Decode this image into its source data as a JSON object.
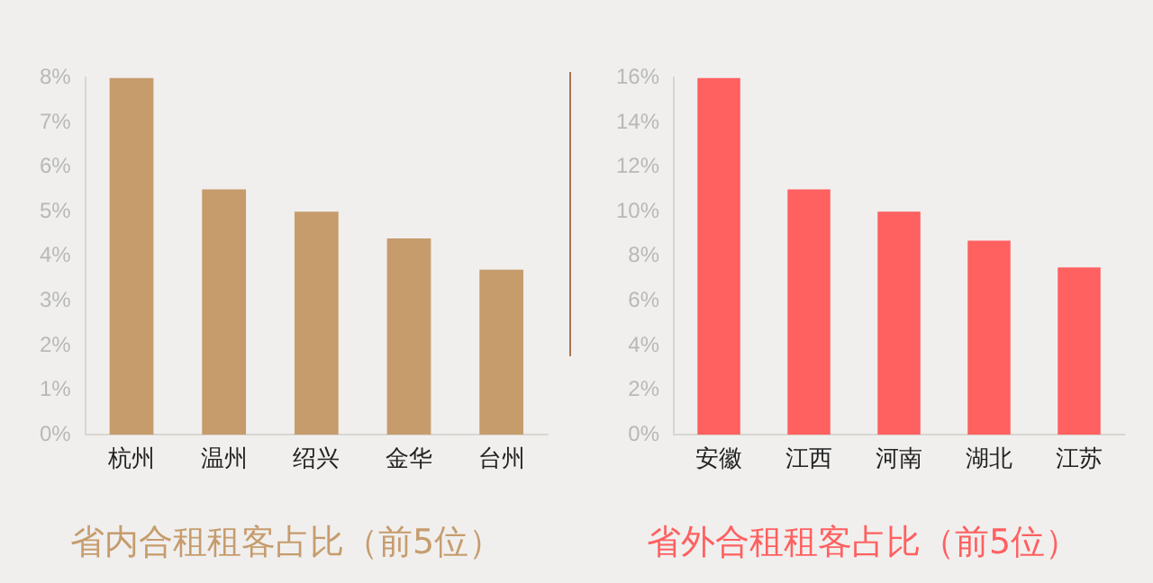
{
  "chart_data": [
    {
      "type": "bar",
      "title": "省内合租租客占比（前5位）",
      "categories": [
        "杭州",
        "温州",
        "绍兴",
        "金华",
        "台州"
      ],
      "values": [
        8.0,
        5.5,
        5.0,
        4.4,
        3.7
      ],
      "color": "#c69c6d",
      "ylim": [
        0,
        8
      ],
      "yticks": [
        {
          "value": 0,
          "label": "0%"
        },
        {
          "value": 1,
          "label": "1%"
        },
        {
          "value": 2,
          "label": "2%"
        },
        {
          "value": 3,
          "label": "3%"
        },
        {
          "value": 4,
          "label": "4%"
        },
        {
          "value": 5,
          "label": "5%"
        },
        {
          "value": 6,
          "label": "6%"
        },
        {
          "value": 7,
          "label": "7%"
        },
        {
          "value": 8,
          "label": "8%"
        }
      ],
      "grid": false,
      "legend": false
    },
    {
      "type": "bar",
      "title": "省外合租租客占比（前5位）",
      "categories": [
        "安徽",
        "江西",
        "河南",
        "湖北",
        "江苏"
      ],
      "values": [
        16,
        11,
        10,
        8.7,
        7.5
      ],
      "color": "#ff6060",
      "ylim": [
        0,
        16
      ],
      "yticks": [
        {
          "value": 0,
          "label": "0%"
        },
        {
          "value": 2,
          "label": "2%"
        },
        {
          "value": 4,
          "label": "4%"
        },
        {
          "value": 6,
          "label": "6%"
        },
        {
          "value": 8,
          "label": "8%"
        },
        {
          "value": 10,
          "label": "10%"
        },
        {
          "value": 12,
          "label": "12%"
        },
        {
          "value": 14,
          "label": "14%"
        },
        {
          "value": 16,
          "label": "16%"
        }
      ],
      "grid": false,
      "legend": false
    }
  ]
}
